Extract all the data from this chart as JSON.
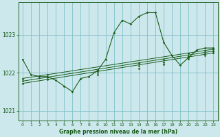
{
  "title": "Graphe pression niveau de la mer (hPa)",
  "bg_color": "#cce8ec",
  "grid_color": "#80c0c8",
  "line_color": "#1a5c1a",
  "xlim": [
    -0.5,
    23.5
  ],
  "ylim": [
    1020.75,
    1023.85
  ],
  "yticks": [
    1021,
    1022,
    1023
  ],
  "xticks": [
    0,
    1,
    2,
    3,
    4,
    5,
    6,
    7,
    8,
    9,
    10,
    11,
    12,
    13,
    14,
    15,
    16,
    17,
    18,
    19,
    20,
    21,
    22,
    23
  ],
  "series1_x": [
    0,
    1,
    2,
    3,
    4,
    5,
    6,
    7,
    8,
    9,
    10,
    11,
    12,
    13,
    14,
    15,
    16,
    17,
    18,
    19,
    20,
    21,
    22,
    23
  ],
  "series1_y": [
    1022.35,
    1021.95,
    1021.9,
    1021.9,
    1021.8,
    1021.65,
    1021.5,
    1021.85,
    1021.9,
    1022.05,
    1022.35,
    1023.05,
    1023.38,
    1023.28,
    1023.48,
    1023.58,
    1023.58,
    1022.8,
    1022.45,
    1022.2,
    1022.4,
    1022.6,
    1022.65,
    1022.65
  ],
  "series2_x": [
    0,
    23
  ],
  "series2_y": [
    1021.85,
    1022.62
  ],
  "series3_x": [
    0,
    23
  ],
  "series3_y": [
    1021.78,
    1022.57
  ],
  "series4_x": [
    0,
    23
  ],
  "series4_y": [
    1021.72,
    1022.52
  ],
  "marker_series2_x": [
    0,
    3,
    9,
    14,
    17,
    20,
    22,
    23
  ],
  "marker_series2_y": [
    1021.85,
    1021.95,
    1022.08,
    1022.25,
    1022.35,
    1022.5,
    1022.58,
    1022.62
  ],
  "marker_series3_x": [
    0,
    3,
    9,
    14,
    17,
    20,
    22,
    23
  ],
  "marker_series3_y": [
    1021.78,
    1021.88,
    1022.01,
    1022.18,
    1022.28,
    1022.43,
    1022.51,
    1022.57
  ],
  "marker_series4_x": [
    0,
    3,
    9,
    14,
    17,
    20,
    22,
    23
  ],
  "marker_series4_y": [
    1021.72,
    1021.82,
    1021.95,
    1022.12,
    1022.22,
    1022.37,
    1022.45,
    1022.52
  ]
}
